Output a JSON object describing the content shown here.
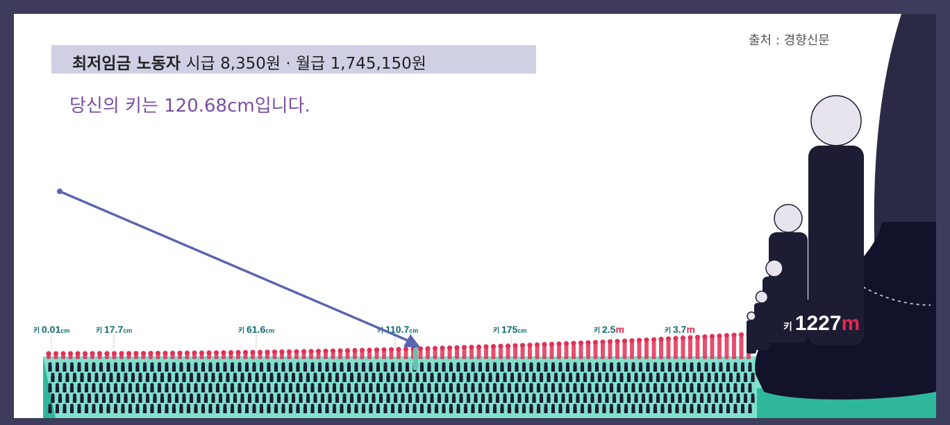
{
  "source": "출처 : 경향신문",
  "headline": {
    "bold": "최저임금 노동자",
    "rest": " 시급 8,350원 · 월급 1,745,150원"
  },
  "subline": "당신의 키는 120.68cm입니다.",
  "height_labels": [
    {
      "prefix": "키",
      "value": "0.01",
      "unit": "cm"
    },
    {
      "prefix": "키",
      "value": "17.7",
      "unit": "cm"
    },
    {
      "prefix": "키",
      "value": "61.6",
      "unit": "cm"
    },
    {
      "prefix": "키",
      "value": "110.7",
      "unit": "cm"
    },
    {
      "prefix": "키",
      "value": "175",
      "unit": "cm"
    },
    {
      "prefix": "키",
      "value": "2.5",
      "unit": "m"
    },
    {
      "prefix": "키",
      "value": "3.7",
      "unit": "m"
    }
  ],
  "giant_label": {
    "prefix": "키",
    "value": "1227",
    "unit": "m"
  },
  "colors": {
    "frame": "#3d3c5c",
    "teal_label": "#0f6b73",
    "red_unit": "#e8254e",
    "crowd_head": "#e03156",
    "arrow": "#5865b0",
    "platform_top": "#7fe0cc",
    "platform_side": "#2fb79c",
    "figure_dark": "#1c1c33"
  }
}
